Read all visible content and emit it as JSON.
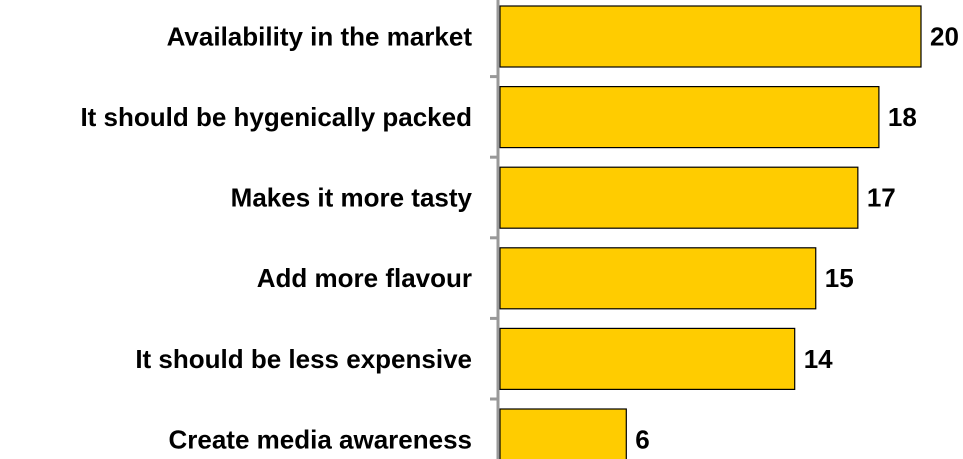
{
  "chart_data": {
    "type": "bar",
    "orientation": "horizontal",
    "categories": [
      "Availability in the market",
      "It should be hygenically packed",
      "Makes it more tasty",
      "Add more flavour",
      "It should be less expensive",
      "Create media awareness"
    ],
    "values": [
      20,
      18,
      17,
      15,
      14,
      6
    ],
    "color": "#ffcc00",
    "xlim": [
      0,
      20
    ]
  }
}
